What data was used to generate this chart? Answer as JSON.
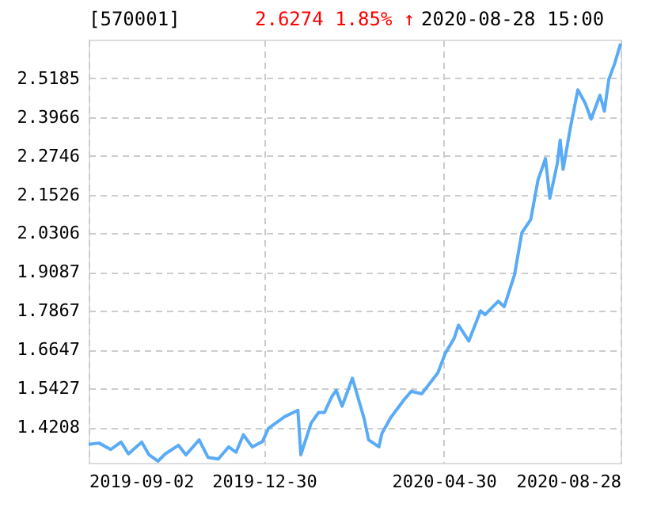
{
  "chart_data": {
    "type": "line",
    "title": "[570001]",
    "annotations": [
      "2.6274  1.85% ↑",
      "2020-08-28 15:00"
    ],
    "x": [
      "2019-09-02",
      "2019-09-09",
      "2019-09-17",
      "2019-09-24",
      "2019-09-29",
      "2019-10-08",
      "2019-10-13",
      "2019-10-19",
      "2019-10-24",
      "2019-11-02",
      "2019-11-07",
      "2019-11-16",
      "2019-11-22",
      "2019-11-29",
      "2019-12-06",
      "2019-12-11",
      "2019-12-16",
      "2019-12-22",
      "2019-12-29",
      "2020-01-02",
      "2020-01-07",
      "2020-01-13",
      "2020-01-22",
      "2020-01-24",
      "2020-01-31",
      "2020-02-05",
      "2020-02-09",
      "2020-02-14",
      "2020-02-17",
      "2020-02-21",
      "2020-02-28",
      "2020-03-07",
      "2020-03-10",
      "2020-03-17",
      "2020-03-19",
      "2020-03-25",
      "2020-04-03",
      "2020-04-08",
      "2020-04-15",
      "2020-04-26",
      "2020-05-01",
      "2020-05-07",
      "2020-05-10",
      "2020-05-17",
      "2020-05-25",
      "2020-05-28",
      "2020-06-06",
      "2020-06-10",
      "2020-06-17",
      "2020-06-22",
      "2020-06-28",
      "2020-07-03",
      "2020-07-08",
      "2020-07-11",
      "2020-07-16",
      "2020-07-18",
      "2020-07-20",
      "2020-07-25",
      "2020-07-30",
      "2020-08-04",
      "2020-08-08",
      "2020-08-14",
      "2020-08-17",
      "2020-08-20",
      "2020-08-24",
      "2020-08-28"
    ],
    "series": [
      {
        "color": "#5aabf5",
        "values": [
          1.367,
          1.371,
          1.351,
          1.374,
          1.337,
          1.374,
          1.334,
          1.314,
          1.337,
          1.364,
          1.334,
          1.381,
          1.326,
          1.321,
          1.359,
          1.342,
          1.397,
          1.359,
          1.376,
          1.417,
          1.434,
          1.454,
          1.474,
          1.334,
          1.434,
          1.467,
          1.467,
          1.517,
          1.537,
          1.487,
          1.575,
          1.447,
          1.381,
          1.359,
          1.401,
          1.451,
          1.507,
          1.534,
          1.526,
          1.592,
          1.653,
          1.7,
          1.742,
          1.692,
          1.787,
          1.775,
          1.817,
          1.8,
          1.9,
          2.033,
          2.074,
          2.199,
          2.266,
          2.141,
          2.249,
          2.324,
          2.232,
          2.365,
          2.482,
          2.44,
          2.39,
          2.465,
          2.415,
          2.515,
          2.565,
          2.6274
        ]
      }
    ],
    "xlim": [
      "2019-09-02",
      "2020-08-28"
    ],
    "xticks": [
      "2019-09-02",
      "2019-12-30",
      "2020-04-30",
      "2020-08-28"
    ],
    "ylim": [
      1.309,
      2.64
    ],
    "yticks": [
      1.4208,
      1.5427,
      1.6647,
      1.7867,
      1.9087,
      2.0306,
      2.1526,
      2.2746,
      2.3966,
      2.5185
    ],
    "grid": true,
    "line_style": "solid",
    "marker": "none"
  }
}
